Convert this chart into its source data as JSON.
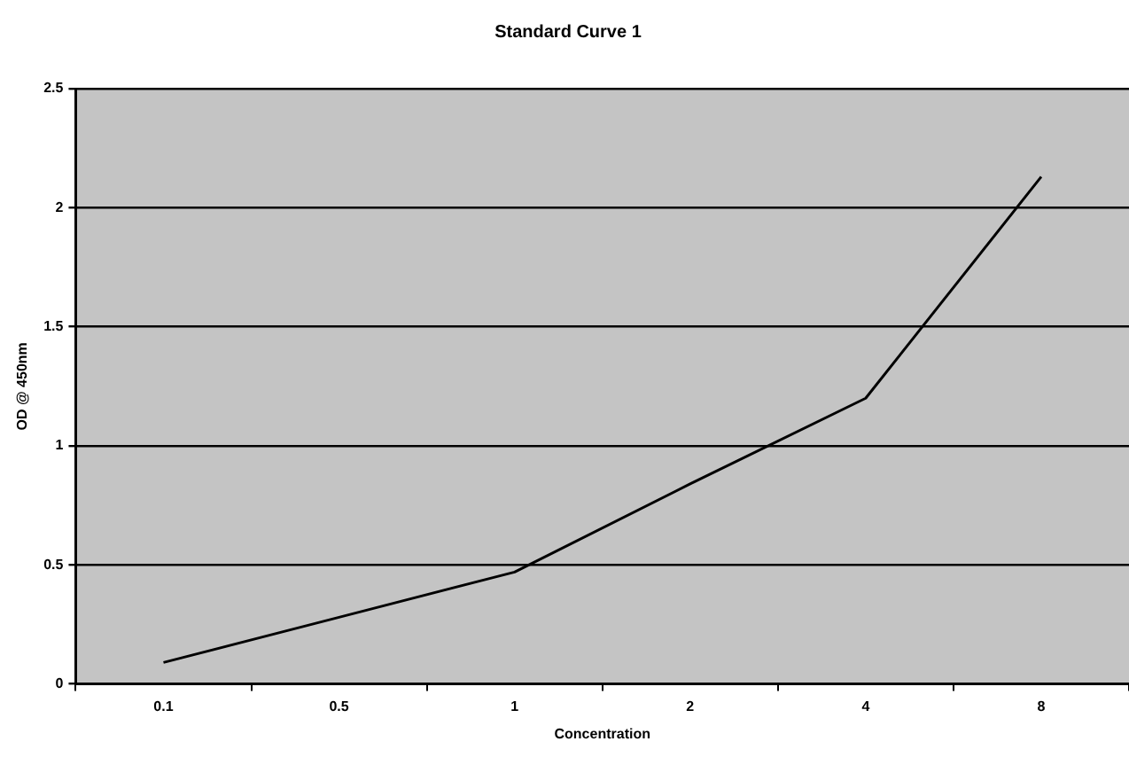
{
  "chart_data": {
    "type": "line",
    "title": "Standard Curve 1",
    "xlabel": "Concentration",
    "ylabel": "OD @ 450nm",
    "categories": [
      "0.1",
      "0.5",
      "1",
      "2",
      "4",
      "8"
    ],
    "series": [
      {
        "color": "#000000",
        "values": [
          0.09,
          0.28,
          0.47,
          0.84,
          1.2,
          2.13
        ]
      }
    ],
    "ylim": [
      0,
      2.5
    ],
    "yticks": [
      0,
      0.5,
      1,
      1.5,
      2,
      2.5
    ],
    "grid": "y",
    "legend": false,
    "marker": "none",
    "line_style": "solid"
  }
}
